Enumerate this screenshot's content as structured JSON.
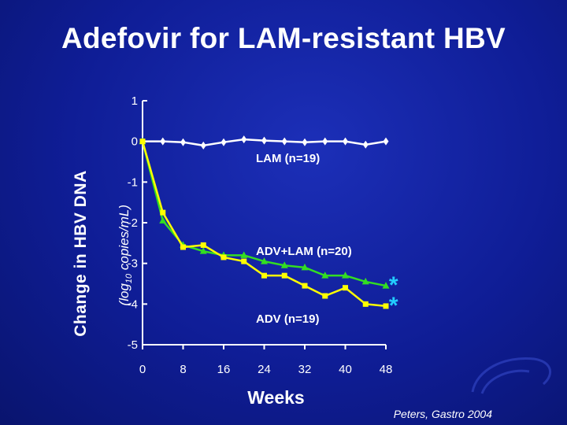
{
  "title": "Adefovir for LAM-resistant HBV",
  "citation": "Peters, Gastro 2004",
  "chart_data": {
    "type": "line",
    "xlabel": "Weeks",
    "ylabel": "Change in HBV DNA",
    "ylabel_sub": "(log10 copies/mL)",
    "xlim": [
      0,
      48
    ],
    "ylim": [
      -5,
      1
    ],
    "x_ticks": [
      "0",
      "8",
      "16",
      "24",
      "32",
      "40",
      "48"
    ],
    "y_ticks": [
      "1",
      "0",
      "-1",
      "-2",
      "-3",
      "-4",
      "-5"
    ],
    "grid": false,
    "legend": "none",
    "series": [
      {
        "name": "LAM (n=19)",
        "color": "#ffffff",
        "marker": "diamond",
        "x": [
          0,
          4,
          8,
          12,
          16,
          20,
          24,
          28,
          32,
          36,
          40,
          44,
          48
        ],
        "y": [
          0,
          0,
          -0.02,
          -0.1,
          -0.02,
          0.05,
          0.02,
          0,
          -0.02,
          0,
          0,
          -0.08,
          0
        ]
      },
      {
        "name": "ADV+LAM (n=20)",
        "color": "#33dd22",
        "marker": "triangle",
        "x": [
          0,
          4,
          8,
          12,
          16,
          20,
          24,
          28,
          32,
          36,
          40,
          44,
          48
        ],
        "y": [
          0,
          -1.95,
          -2.55,
          -2.7,
          -2.8,
          -2.8,
          -2.95,
          -3.05,
          -3.1,
          -3.3,
          -3.3,
          -3.45,
          -3.55
        ]
      },
      {
        "name": "ADV (n=19)",
        "color": "#ffff00",
        "marker": "square",
        "x": [
          0,
          4,
          8,
          12,
          16,
          20,
          24,
          28,
          32,
          36,
          40,
          44,
          48
        ],
        "y": [
          0,
          -1.75,
          -2.6,
          -2.55,
          -2.85,
          -2.95,
          -3.3,
          -3.3,
          -3.55,
          -3.8,
          -3.6,
          -4.0,
          -4.05
        ]
      }
    ],
    "annotations": [
      {
        "text": "*",
        "color": "#22ccff",
        "x": 49.5,
        "y": -3.45
      },
      {
        "text": "*",
        "color": "#22ccff",
        "x": 49.5,
        "y": -3.95
      }
    ]
  }
}
